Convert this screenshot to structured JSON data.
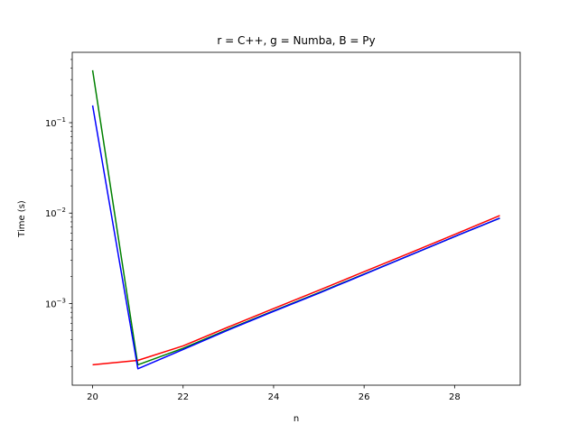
{
  "chart_data": {
    "type": "line",
    "title": "r = C++, g = Numba, B = Py",
    "xlabel": "n",
    "ylabel": "Time (s)",
    "yscale": "log",
    "xlim": [
      19.55,
      29.45
    ],
    "ylim": [
      0.000125,
      0.6
    ],
    "xticks": [
      20,
      22,
      24,
      26,
      28
    ],
    "xtick_labels": [
      "20",
      "22",
      "24",
      "26",
      "28"
    ],
    "yticks": [
      0.001,
      0.01,
      0.1
    ],
    "ytick_labels": [
      {
        "base": "10",
        "exp": "−3"
      },
      {
        "base": "10",
        "exp": "−2"
      },
      {
        "base": "10",
        "exp": "−1"
      }
    ],
    "grid": false,
    "x": [
      20,
      21,
      22,
      23,
      24,
      25,
      26,
      27,
      28,
      29
    ],
    "series": [
      {
        "color": "#008000",
        "values": [
          0.38,
          0.00021,
          0.00032,
          0.00052,
          0.00083,
          0.00132,
          0.00212,
          0.0034,
          0.0055,
          0.0088
        ]
      },
      {
        "color": "#ff0000",
        "values": [
          0.00021,
          0.000235,
          0.00034,
          0.00055,
          0.00088,
          0.0014,
          0.00225,
          0.0036,
          0.0058,
          0.0094
        ]
      },
      {
        "color": "#0000ff",
        "values": [
          0.155,
          0.00019,
          0.00031,
          0.00051,
          0.00082,
          0.0013,
          0.0021,
          0.0034,
          0.0055,
          0.0088
        ]
      }
    ]
  }
}
